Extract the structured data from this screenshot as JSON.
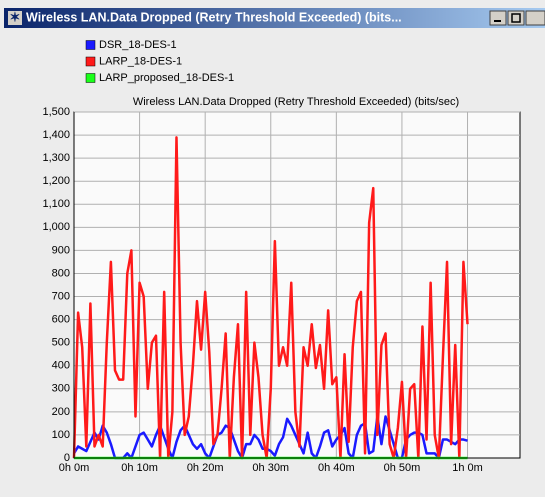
{
  "window_title": "Wireless LAN.Data Dropped (Retry Threshold Exceeded) (bits...",
  "chart_data": {
    "type": "line",
    "title": "Wireless LAN.Data Dropped (Retry Threshold Exceeded) (bits/sec)",
    "x": [
      0,
      0.625,
      1.25,
      1.875,
      2.5,
      3.125,
      3.75,
      4.375,
      5,
      5.625,
      6.25,
      6.875,
      7.5,
      8.125,
      8.75,
      9.375,
      10,
      10.625,
      11.25,
      11.875,
      12.5,
      13.125,
      13.75,
      14.375,
      15,
      15.625,
      16.25,
      16.875,
      17.5,
      18.125,
      18.75,
      19.375,
      20,
      20.625,
      21.25,
      21.875,
      22.5,
      23.125,
      23.75,
      24.375,
      25,
      25.625,
      26.25,
      26.875,
      27.5,
      28.125,
      28.75,
      29.375,
      30,
      30.625,
      31.25,
      31.875,
      32.5,
      33.125,
      33.75,
      34.375,
      35,
      35.625,
      36.25,
      36.875,
      37.5,
      38.125,
      38.75,
      39.375,
      40,
      40.625,
      41.25,
      41.875,
      42.5,
      43.125,
      43.75,
      44.375,
      45,
      45.625,
      46.25,
      46.875,
      47.5,
      48.125,
      48.75,
      49.375,
      50,
      50.625,
      51.25,
      51.875,
      52.5,
      53.125,
      53.75,
      54.375,
      55,
      55.625,
      56.25,
      56.875,
      57.5,
      58.125,
      58.75,
      59.375,
      60
    ],
    "series": [
      {
        "name": "DSR_18-DES-1",
        "color": "#1a1aff",
        "values": [
          20,
          50,
          40,
          30,
          70,
          110,
          80,
          140,
          110,
          60,
          0,
          0,
          0,
          20,
          0,
          50,
          100,
          110,
          80,
          50,
          100,
          140,
          90,
          40,
          0,
          70,
          120,
          140,
          100,
          60,
          40,
          60,
          20,
          0,
          50,
          100,
          110,
          140,
          130,
          80,
          30,
          0,
          60,
          60,
          100,
          80,
          40,
          40,
          30,
          10,
          60,
          90,
          170,
          140,
          100,
          60,
          20,
          110,
          20,
          0,
          50,
          110,
          120,
          50,
          80,
          100,
          130,
          20,
          0,
          100,
          140,
          150,
          20,
          30,
          180,
          60,
          180,
          120,
          60,
          0,
          0,
          80,
          100,
          110,
          110,
          100,
          20,
          20,
          20,
          0,
          80,
          80,
          70,
          60,
          80,
          80,
          75
        ]
      },
      {
        "name": "LARP_18-DES-1",
        "color": "#ff1a1a",
        "values": [
          0,
          630,
          480,
          50,
          670,
          50,
          100,
          50,
          500,
          850,
          380,
          340,
          340,
          800,
          900,
          180,
          760,
          700,
          300,
          500,
          530,
          0,
          720,
          0,
          200,
          1390,
          500,
          100,
          180,
          400,
          680,
          470,
          720,
          460,
          60,
          100,
          300,
          540,
          0,
          350,
          580,
          0,
          720,
          100,
          500,
          350,
          100,
          0,
          300,
          940,
          400,
          480,
          400,
          760,
          200,
          50,
          480,
          400,
          580,
          390,
          490,
          300,
          640,
          320,
          350,
          0,
          450,
          70,
          480,
          680,
          720,
          20,
          1020,
          1170,
          100,
          490,
          540,
          60,
          0,
          130,
          330,
          0,
          300,
          320,
          0,
          570,
          80,
          760,
          100,
          0,
          440,
          850,
          60,
          490,
          0,
          850,
          580
        ]
      },
      {
        "name": "LARP_proposed_18-DES-1",
        "color": "#1aff1a",
        "x": [
          0,
          60
        ],
        "values": [
          0,
          0
        ]
      }
    ],
    "xlim": [
      0,
      68
    ],
    "xticks": [
      {
        "value": 0,
        "label": "0h 0m"
      },
      {
        "value": 10,
        "label": "0h 10m"
      },
      {
        "value": 20,
        "label": "0h 20m"
      },
      {
        "value": 30,
        "label": "0h 30m"
      },
      {
        "value": 40,
        "label": "0h 40m"
      },
      {
        "value": 50,
        "label": "0h 50m"
      },
      {
        "value": 60,
        "label": "1h 0m"
      }
    ],
    "ylim": [
      0,
      1500
    ],
    "yticks": [
      0,
      100,
      200,
      300,
      400,
      500,
      600,
      700,
      800,
      900,
      {
        "value": 1000,
        "label": "1,000"
      },
      {
        "value": 1100,
        "label": "1,100"
      },
      {
        "value": 1200,
        "label": "1,200"
      },
      {
        "value": 1300,
        "label": "1,300"
      },
      {
        "value": 1400,
        "label": "1,400"
      },
      {
        "value": 1500,
        "label": "1,500"
      }
    ],
    "grid": true
  }
}
